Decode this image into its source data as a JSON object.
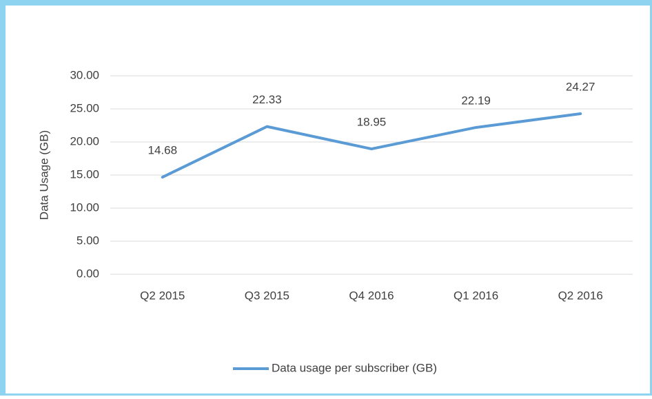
{
  "chart_data": {
    "type": "line",
    "y_label": "Data Usage (GB)",
    "categories": [
      "Q2 2015",
      "Q3 2015",
      "Q4 2016",
      "Q1 2016",
      "Q2 2016"
    ],
    "series": [
      {
        "name": "Data usage per subscriber (GB)",
        "color": "#5b9bd5",
        "values": [
          14.68,
          22.33,
          18.95,
          22.19,
          24.27
        ]
      }
    ],
    "ylim": [
      0,
      30
    ],
    "yticks": [
      {
        "value": 0,
        "label": "0.00"
      },
      {
        "value": 5,
        "label": "5.00"
      },
      {
        "value": 10,
        "label": "10.00"
      },
      {
        "value": 15,
        "label": "15.00"
      },
      {
        "value": 20,
        "label": "20.00"
      },
      {
        "value": 25,
        "label": "25.00"
      },
      {
        "value": 30,
        "label": "30.00"
      }
    ],
    "grid": true,
    "legend": "bottom"
  }
}
